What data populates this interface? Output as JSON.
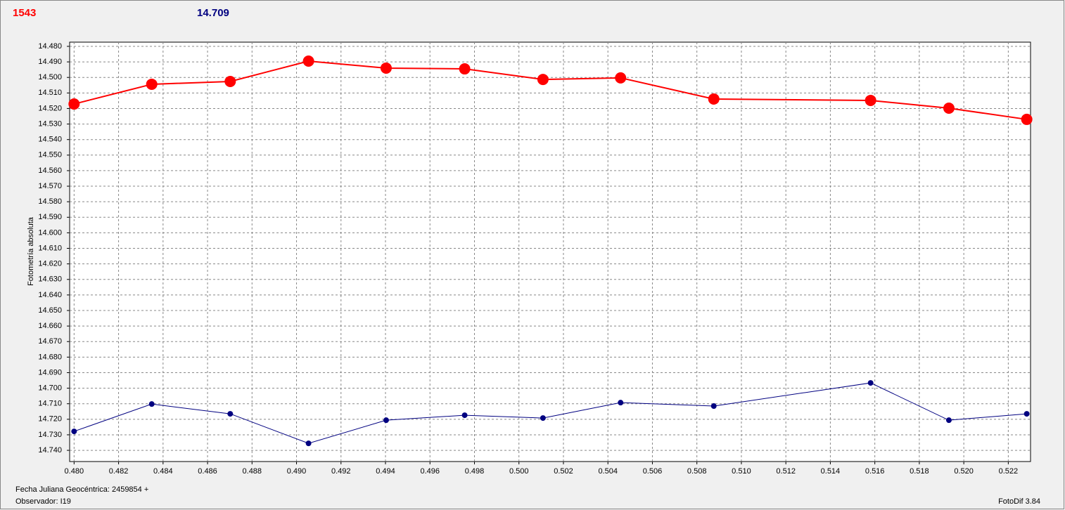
{
  "chart_data": {
    "type": "line",
    "annotations": [
      {
        "text": "1543",
        "color": "#ff0000"
      },
      {
        "text": "14.709",
        "color": "#000080"
      }
    ],
    "y_label": "Fotometría absoluta",
    "footer": [
      "Fecha Juliana Geocéntrica: 2459854 +",
      "Observador: I19"
    ],
    "footer_right": "FotoDif 3.84",
    "y_inverted": true,
    "grid": true,
    "x": [
      0.48,
      0.48349,
      0.48702,
      0.49054,
      0.49403,
      0.49756,
      0.50108,
      0.50457,
      0.50876,
      0.51581,
      0.51933,
      0.52283
    ],
    "series": [
      {
        "color": "#ff0000",
        "values": [
          14.5171,
          14.5044,
          14.5026,
          14.4895,
          14.494,
          14.4945,
          14.5013,
          14.5003,
          14.5139,
          14.5148,
          14.5198,
          14.527
        ]
      },
      {
        "color": "#000080",
        "values": [
          14.7278,
          14.7102,
          14.7165,
          14.7355,
          14.7206,
          14.7174,
          14.7192,
          14.7093,
          14.7115,
          14.6966,
          14.7206,
          14.7165
        ]
      }
    ],
    "xlim": [
      0.4798,
      0.523
    ],
    "ylim": [
      14.4773,
      14.7472
    ],
    "xticks": [
      {
        "value": 0.48,
        "label": "0.480"
      },
      {
        "value": 0.482,
        "label": "0.482"
      },
      {
        "value": 0.484,
        "label": "0.484"
      },
      {
        "value": 0.486,
        "label": "0.486"
      },
      {
        "value": 0.488,
        "label": "0.488"
      },
      {
        "value": 0.49,
        "label": "0.490"
      },
      {
        "value": 0.492,
        "label": "0.492"
      },
      {
        "value": 0.494,
        "label": "0.494"
      },
      {
        "value": 0.496,
        "label": "0.496"
      },
      {
        "value": 0.498,
        "label": "0.498"
      },
      {
        "value": 0.5,
        "label": "0.500"
      },
      {
        "value": 0.502,
        "label": "0.502"
      },
      {
        "value": 0.504,
        "label": "0.504"
      },
      {
        "value": 0.506,
        "label": "0.506"
      },
      {
        "value": 0.508,
        "label": "0.508"
      },
      {
        "value": 0.51,
        "label": "0.510"
      },
      {
        "value": 0.512,
        "label": "0.512"
      },
      {
        "value": 0.514,
        "label": "0.514"
      },
      {
        "value": 0.516,
        "label": "0.516"
      },
      {
        "value": 0.518,
        "label": "0.518"
      },
      {
        "value": 0.52,
        "label": "0.520"
      },
      {
        "value": 0.522,
        "label": "0.522"
      }
    ],
    "yticks": [
      {
        "value": 14.48,
        "label": "14.480"
      },
      {
        "value": 14.49,
        "label": "14.490"
      },
      {
        "value": 14.5,
        "label": "14.500"
      },
      {
        "value": 14.51,
        "label": "14.510"
      },
      {
        "value": 14.52,
        "label": "14.520"
      },
      {
        "value": 14.53,
        "label": "14.530"
      },
      {
        "value": 14.54,
        "label": "14.540"
      },
      {
        "value": 14.55,
        "label": "14.550"
      },
      {
        "value": 14.56,
        "label": "14.560"
      },
      {
        "value": 14.57,
        "label": "14.570"
      },
      {
        "value": 14.58,
        "label": "14.580"
      },
      {
        "value": 14.59,
        "label": "14.590"
      },
      {
        "value": 14.6,
        "label": "14.600"
      },
      {
        "value": 14.61,
        "label": "14.610"
      },
      {
        "value": 14.62,
        "label": "14.620"
      },
      {
        "value": 14.63,
        "label": "14.630"
      },
      {
        "value": 14.64,
        "label": "14.640"
      },
      {
        "value": 14.65,
        "label": "14.650"
      },
      {
        "value": 14.66,
        "label": "14.660"
      },
      {
        "value": 14.67,
        "label": "14.670"
      },
      {
        "value": 14.68,
        "label": "14.680"
      },
      {
        "value": 14.69,
        "label": "14.690"
      },
      {
        "value": 14.7,
        "label": "14.700"
      },
      {
        "value": 14.71,
        "label": "14.710"
      },
      {
        "value": 14.72,
        "label": "14.720"
      },
      {
        "value": 14.73,
        "label": "14.730"
      },
      {
        "value": 14.74,
        "label": "14.740"
      }
    ]
  }
}
